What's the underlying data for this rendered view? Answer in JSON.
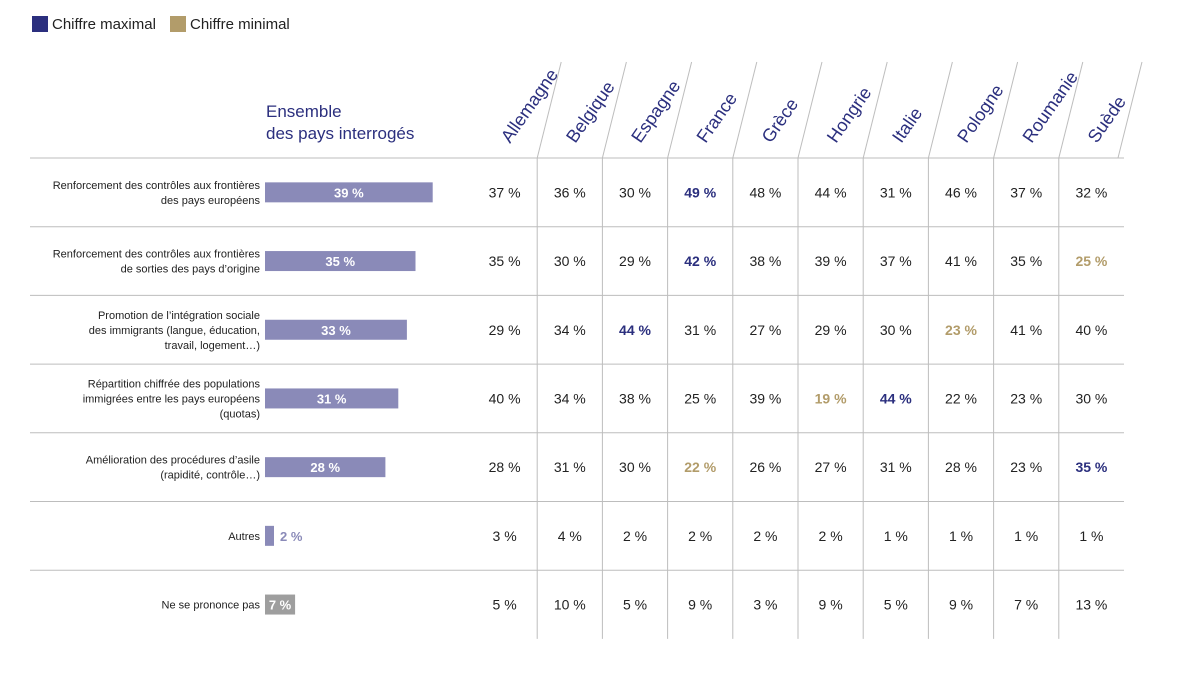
{
  "legend": {
    "max_label": "Chiffre maximal",
    "min_label": "Chiffre minimal"
  },
  "overall_header": {
    "line1": "Ensemble",
    "line2": "des pays interrogés"
  },
  "colors": {
    "max": "#2b2f7e",
    "min": "#b29c6a",
    "bar": "#8a8ab8",
    "bar_gray": "#9e9e9e",
    "text": "#222222",
    "header_text": "#2b2f7e",
    "grid": "#bdbdbd"
  },
  "chart_data": {
    "type": "table",
    "title": "",
    "overall_column": "Ensemble des pays interrogés",
    "countries": [
      "Allemagne",
      "Belgique",
      "Espagne",
      "France",
      "Grèce",
      "Hongrie",
      "Italie",
      "Pologne",
      "Roumanie",
      "Suède"
    ],
    "rows": [
      {
        "label_lines": [
          "Renforcement des contrôles aux frontières",
          "des pays européens"
        ],
        "overall": 39,
        "overall_label": "39 %",
        "bar_style": "normal",
        "values": [
          37,
          36,
          30,
          49,
          48,
          44,
          31,
          46,
          37,
          32
        ],
        "labels": [
          "37 %",
          "36 %",
          "30 %",
          "49 %",
          "48 %",
          "44 %",
          "31 %",
          "46 %",
          "37 %",
          "32 %"
        ],
        "highlight": [
          "",
          "",
          "",
          "max",
          "",
          "",
          "",
          "",
          "",
          ""
        ]
      },
      {
        "label_lines": [
          "Renforcement des contrôles aux frontières",
          "de sorties des pays d’origine"
        ],
        "overall": 35,
        "overall_label": "35 %",
        "bar_style": "normal",
        "values": [
          35,
          30,
          29,
          42,
          38,
          39,
          37,
          41,
          35,
          25
        ],
        "labels": [
          "35 %",
          "30 %",
          "29 %",
          "42 %",
          "38 %",
          "39 %",
          "37 %",
          "41 %",
          "35 %",
          "25 %"
        ],
        "highlight": [
          "",
          "",
          "",
          "max",
          "",
          "",
          "",
          "",
          "",
          "min"
        ]
      },
      {
        "label_lines": [
          "Promotion de l’intégration sociale",
          "des immigrants (langue, éducation,",
          "travail, logement…)"
        ],
        "overall": 33,
        "overall_label": "33 %",
        "bar_style": "normal",
        "values": [
          29,
          34,
          44,
          31,
          27,
          29,
          30,
          23,
          41,
          40
        ],
        "labels": [
          "29 %",
          "34 %",
          "44 %",
          "31 %",
          "27 %",
          "29 %",
          "30 %",
          "23 %",
          "41 %",
          "40 %"
        ],
        "highlight": [
          "",
          "",
          "max",
          "",
          "",
          "",
          "",
          "min",
          "",
          ""
        ]
      },
      {
        "label_lines": [
          "Répartition chiffrée des populations",
          "immigrées entre les pays européens",
          "(quotas)"
        ],
        "overall": 31,
        "overall_label": "31 %",
        "bar_style": "normal",
        "values": [
          40,
          34,
          38,
          25,
          39,
          19,
          44,
          22,
          23,
          30
        ],
        "labels": [
          "40 %",
          "34 %",
          "38 %",
          "25 %",
          "39 %",
          "19 %",
          "44 %",
          "22 %",
          "23 %",
          "30 %"
        ],
        "highlight": [
          "",
          "",
          "",
          "",
          "",
          "min",
          "max",
          "",
          "",
          ""
        ]
      },
      {
        "label_lines": [
          "Amélioration des procédures d’asile",
          "(rapidité, contrôle…)"
        ],
        "overall": 28,
        "overall_label": "28 %",
        "bar_style": "normal",
        "values": [
          28,
          31,
          30,
          22,
          26,
          27,
          31,
          28,
          23,
          35
        ],
        "labels": [
          "28 %",
          "31 %",
          "30 %",
          "22 %",
          "26 %",
          "27 %",
          "31 %",
          "28 %",
          "23 %",
          "35 %"
        ],
        "highlight": [
          "",
          "",
          "",
          "min",
          "",
          "",
          "",
          "",
          "",
          "max"
        ]
      },
      {
        "label_lines": [
          "Autres"
        ],
        "overall": 2,
        "overall_label": "2 %",
        "bar_style": "small",
        "values": [
          3,
          4,
          2,
          2,
          2,
          2,
          1,
          1,
          1,
          1
        ],
        "labels": [
          "3 %",
          "4 %",
          "2 %",
          "2 %",
          "2 %",
          "2 %",
          "1 %",
          "1 %",
          "1 %",
          "1 %"
        ],
        "highlight": [
          "",
          "",
          "",
          "",
          "",
          "",
          "",
          "",
          "",
          ""
        ]
      },
      {
        "label_lines": [
          "Ne se prononce pas"
        ],
        "overall": 7,
        "overall_label": "7 %",
        "bar_style": "gray",
        "values": [
          5,
          10,
          5,
          9,
          3,
          9,
          5,
          9,
          7,
          13
        ],
        "labels": [
          "5 %",
          "10 %",
          "5 %",
          "9 %",
          "3 %",
          "9 %",
          "5 %",
          "9 %",
          "7 %",
          "13 %"
        ],
        "highlight": [
          "",
          "",
          "",
          "",
          "",
          "",
          "",
          "",
          "",
          ""
        ]
      }
    ]
  }
}
